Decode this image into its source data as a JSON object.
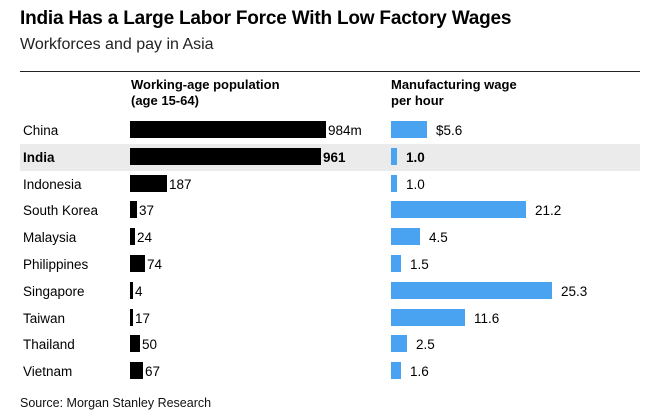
{
  "title": "India Has a Large Labor Force With Low Factory Wages",
  "subtitle": "Workforces and pay in Asia",
  "source": "Source: Morgan Stanley Research",
  "chart_data": {
    "type": "bar",
    "orientation": "horizontal",
    "title": "India Has a Large Labor Force With Low Factory Wages",
    "subtitle": "Workforces and pay in Asia",
    "categories": [
      "China",
      "India",
      "Indonesia",
      "South Korea",
      "Malaysia",
      "Philippines",
      "Singapore",
      "Taiwan",
      "Thailand",
      "Vietnam"
    ],
    "highlight": "India",
    "series": [
      {
        "name_lines": [
          "Working-age population",
          "(age 15-64)"
        ],
        "color": "#000000",
        "values": [
          984,
          961,
          187,
          37,
          24,
          74,
          4,
          17,
          50,
          67
        ],
        "labels": [
          "984m",
          "961",
          "187",
          "37",
          "24",
          "74",
          "4",
          "17",
          "50",
          "67"
        ]
      },
      {
        "name_lines": [
          "Manufacturing wage",
          "per hour"
        ],
        "color": "#4aa3f0",
        "values": [
          5.6,
          1.0,
          1.0,
          21.2,
          4.5,
          1.5,
          25.3,
          11.6,
          2.5,
          1.6
        ],
        "labels": [
          "$5.6",
          "1.0",
          "1.0",
          "21.2",
          "4.5",
          "1.5",
          "25.3",
          "11.6",
          "2.5",
          "1.6"
        ]
      }
    ]
  }
}
